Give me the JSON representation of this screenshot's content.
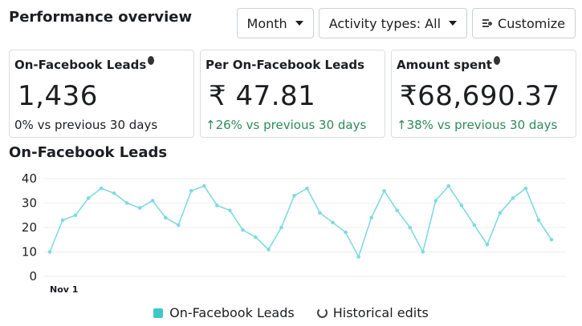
{
  "header": {
    "title": "Performance overview",
    "period_label": "Month",
    "activity_label": "Activity types: All",
    "customize_label": "Customize"
  },
  "cards": [
    {
      "title": "On-Facebook Leads",
      "value": "1,436",
      "delta": "0% vs previous 30 days",
      "has_info": true
    },
    {
      "title": "Per On-Facebook Leads",
      "value": "₹ 47.81",
      "delta": "↑26% vs previous 30 days",
      "has_info": false
    },
    {
      "title": "Amount spent",
      "value": "₹68,690.37",
      "delta": "↑38%  vs previous 30 days",
      "has_info": true
    }
  ],
  "colors": {
    "series": "#7fdbe0",
    "accent_green": "#2e8b57",
    "legend_swatch": "#3ec9c9"
  },
  "chart_data": {
    "type": "line",
    "title": "On-Facebook Leads",
    "x_tick_labels": [
      "Nov 1"
    ],
    "yticks": [
      0,
      10,
      20,
      30,
      40
    ],
    "ylim": [
      0,
      40
    ],
    "grid": true,
    "legend": "bottom-center",
    "series": [
      {
        "name": "On-Facebook Leads",
        "values": [
          10,
          23,
          25,
          32,
          36,
          34,
          30,
          28,
          31,
          24,
          21,
          35,
          37,
          29,
          27,
          19,
          16,
          11,
          20,
          33,
          36,
          26,
          22,
          18,
          8,
          24,
          35,
          27,
          20,
          10,
          31,
          37,
          29,
          21,
          13,
          26,
          32,
          36,
          23,
          15
        ]
      }
    ],
    "legend_items": [
      "On-Facebook Leads",
      "Historical edits"
    ]
  }
}
